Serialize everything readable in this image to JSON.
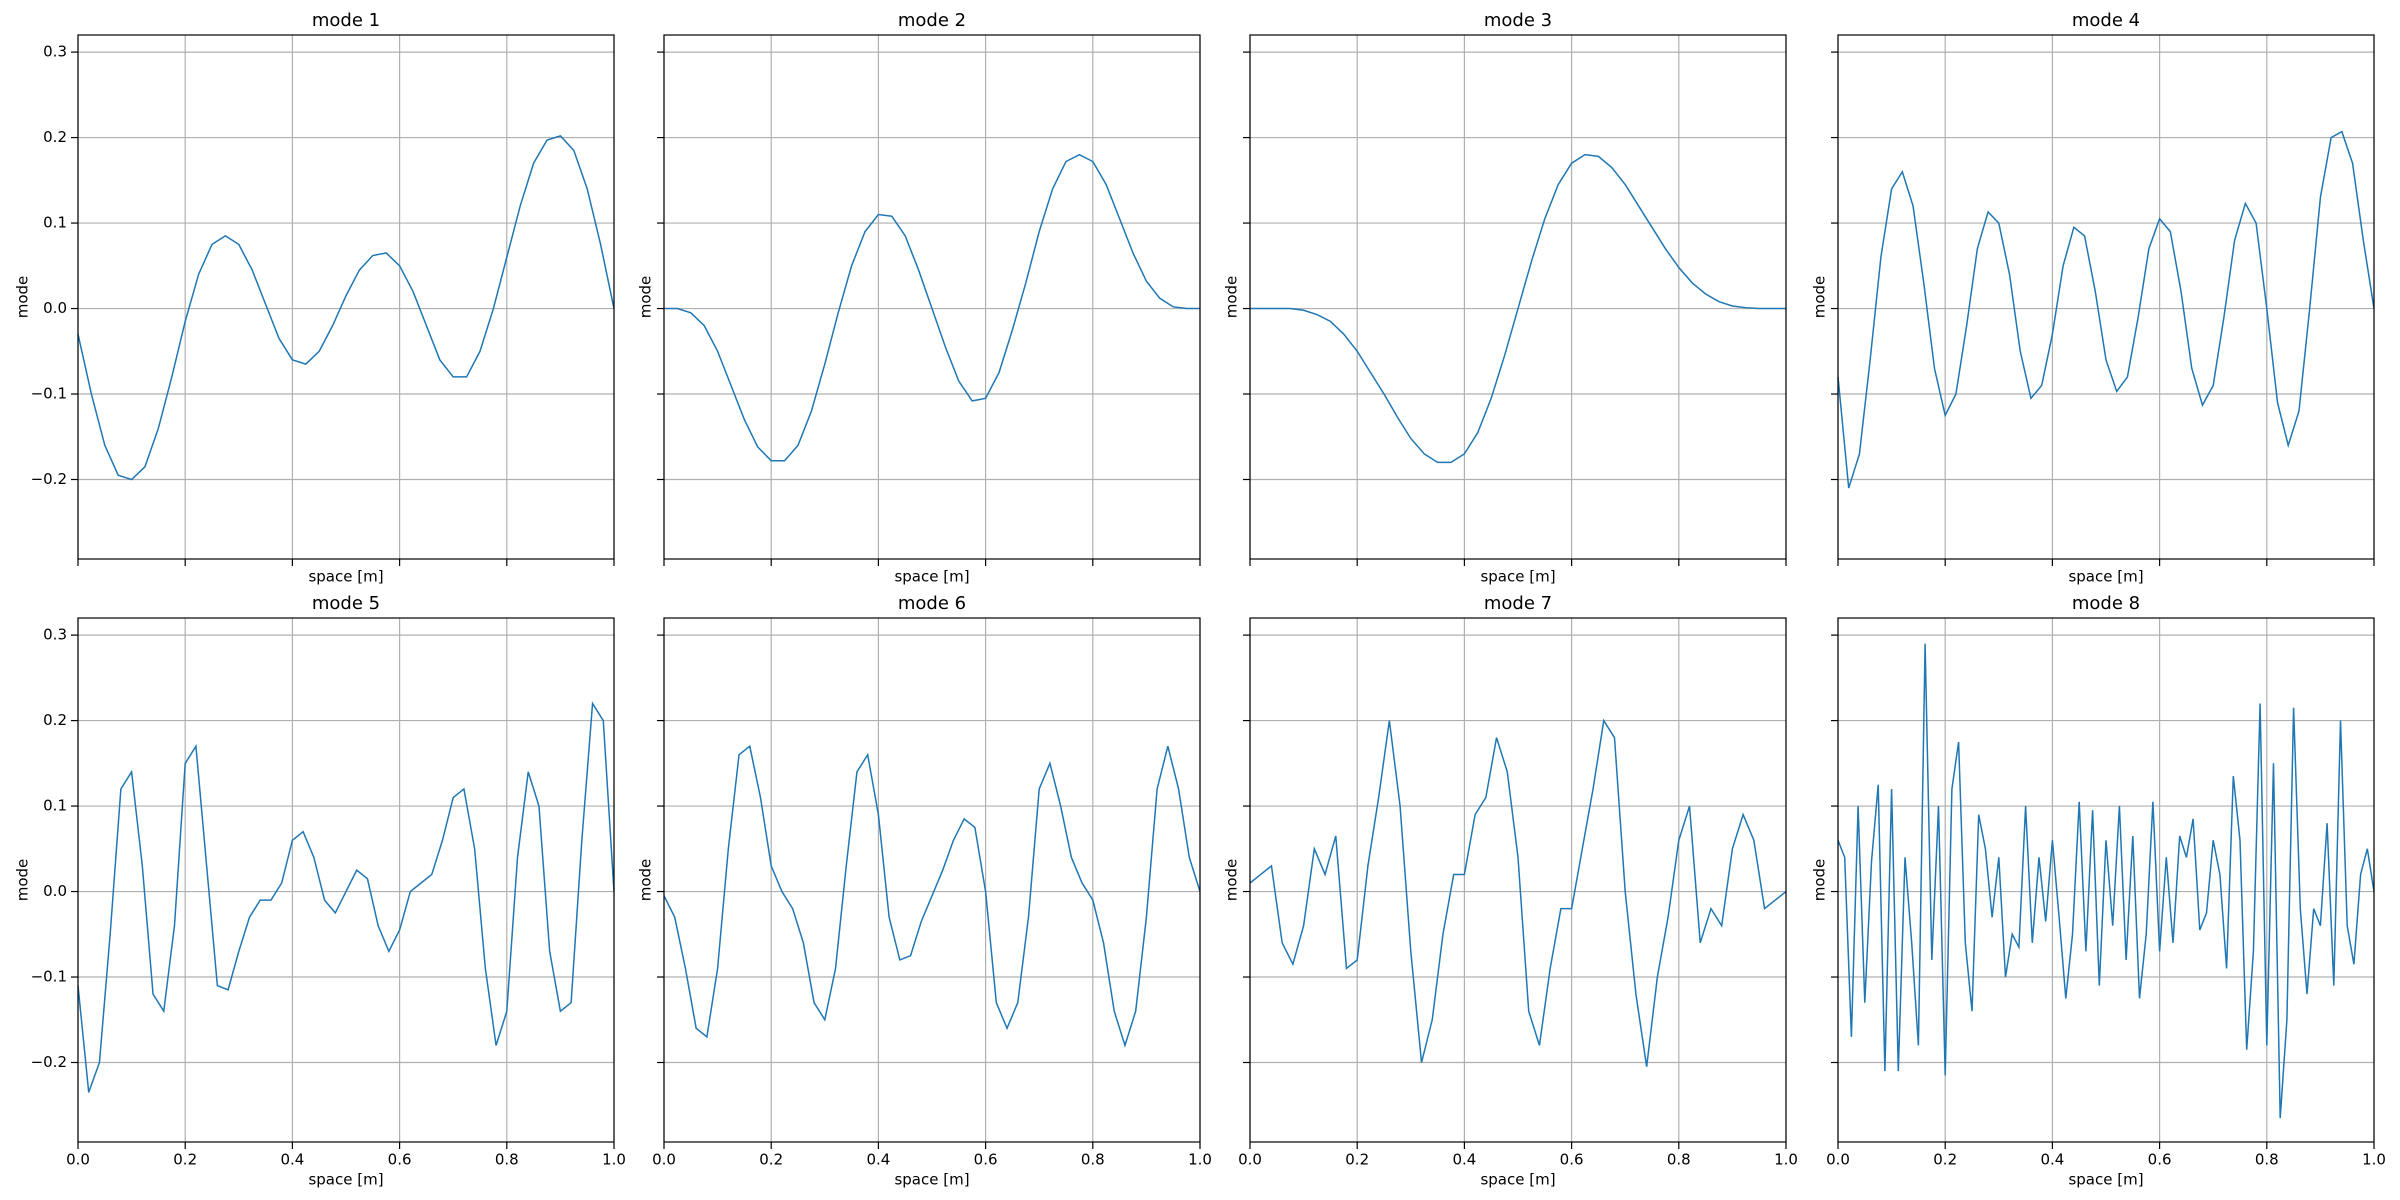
{
  "chart_data": [
    {
      "type": "line",
      "title": "mode 1",
      "xlabel": "space [m]",
      "ylabel": "mode",
      "color": "#1f77b4",
      "grid": true,
      "xlim": [
        0,
        1
      ],
      "ylim": [
        -0.293,
        0.32
      ],
      "xticks": [
        0,
        0.2,
        0.4,
        0.6,
        0.8,
        1
      ],
      "yticks": [
        {
          "value": -0.2,
          "label": "−0.2"
        },
        {
          "value": -0.1,
          "label": "−0.1"
        },
        {
          "value": 0,
          "label": "0.0"
        },
        0.1,
        0.2,
        0.3
      ],
      "x": [
        0,
        0.025,
        0.05,
        0.075,
        0.1,
        0.125,
        0.15,
        0.175,
        0.2,
        0.225,
        0.25,
        0.275,
        0.3,
        0.325,
        0.35,
        0.375,
        0.4,
        0.425,
        0.45,
        0.475,
        0.5,
        0.525,
        0.55,
        0.575,
        0.6,
        0.625,
        0.65,
        0.675,
        0.7,
        0.725,
        0.75,
        0.775,
        0.8,
        0.825,
        0.85,
        0.875,
        0.9,
        0.925,
        0.95,
        0.975,
        1
      ],
      "values": [
        -0.03,
        -0.1,
        -0.16,
        -0.195,
        -0.2,
        -0.185,
        -0.14,
        -0.08,
        -0.015,
        0.04,
        0.075,
        0.085,
        0.075,
        0.045,
        0.005,
        -0.035,
        -0.06,
        -0.065,
        -0.05,
        -0.02,
        0.015,
        0.045,
        0.062,
        0.065,
        0.05,
        0.02,
        -0.02,
        -0.06,
        -0.08,
        -0.08,
        -0.05,
        0.0,
        0.06,
        0.12,
        0.17,
        0.197,
        0.202,
        0.185,
        0.14,
        0.075,
        0.0
      ]
    },
    {
      "type": "line",
      "title": "mode 2",
      "xlabel": "space [m]",
      "ylabel": "mode",
      "color": "#1f77b4",
      "grid": true,
      "xlim": [
        0,
        1
      ],
      "ylim": [
        -0.293,
        0.32
      ],
      "xticks": [
        0,
        0.2,
        0.4,
        0.6,
        0.8,
        1
      ],
      "yticks": [
        -0.2,
        -0.1,
        0,
        0.1,
        0.2,
        0.3
      ],
      "x": [
        0,
        0.025,
        0.05,
        0.075,
        0.1,
        0.125,
        0.15,
        0.175,
        0.2,
        0.225,
        0.25,
        0.275,
        0.3,
        0.325,
        0.35,
        0.375,
        0.4,
        0.425,
        0.45,
        0.475,
        0.5,
        0.525,
        0.55,
        0.575,
        0.6,
        0.625,
        0.65,
        0.675,
        0.7,
        0.725,
        0.75,
        0.775,
        0.8,
        0.825,
        0.85,
        0.875,
        0.9,
        0.925,
        0.95,
        0.975,
        1
      ],
      "values": [
        0,
        0,
        -0.005,
        -0.02,
        -0.05,
        -0.09,
        -0.13,
        -0.162,
        -0.178,
        -0.178,
        -0.16,
        -0.12,
        -0.065,
        -0.005,
        0.05,
        0.09,
        0.11,
        0.108,
        0.085,
        0.045,
        0.0,
        -0.045,
        -0.085,
        -0.108,
        -0.105,
        -0.075,
        -0.025,
        0.03,
        0.09,
        0.14,
        0.172,
        0.18,
        0.172,
        0.145,
        0.105,
        0.065,
        0.032,
        0.012,
        0.002,
        0,
        0
      ]
    },
    {
      "type": "line",
      "title": "mode 3",
      "xlabel": "space [m]",
      "ylabel": "mode",
      "color": "#1f77b4",
      "grid": true,
      "xlim": [
        0,
        1
      ],
      "ylim": [
        -0.293,
        0.32
      ],
      "xticks": [
        0,
        0.2,
        0.4,
        0.6,
        0.8,
        1
      ],
      "yticks": [
        -0.2,
        -0.1,
        0,
        0.1,
        0.2,
        0.3
      ],
      "x": [
        0,
        0.025,
        0.05,
        0.075,
        0.1,
        0.125,
        0.15,
        0.175,
        0.2,
        0.225,
        0.25,
        0.275,
        0.3,
        0.325,
        0.35,
        0.375,
        0.4,
        0.425,
        0.45,
        0.475,
        0.5,
        0.525,
        0.55,
        0.575,
        0.6,
        0.625,
        0.65,
        0.675,
        0.7,
        0.725,
        0.75,
        0.775,
        0.8,
        0.825,
        0.85,
        0.875,
        0.9,
        0.925,
        0.95,
        0.975,
        1
      ],
      "values": [
        0,
        0,
        0,
        0,
        -0.002,
        -0.007,
        -0.015,
        -0.03,
        -0.05,
        -0.075,
        -0.1,
        -0.127,
        -0.152,
        -0.17,
        -0.18,
        -0.18,
        -0.17,
        -0.145,
        -0.105,
        -0.055,
        0.0,
        0.055,
        0.105,
        0.145,
        0.17,
        0.18,
        0.178,
        0.165,
        0.145,
        0.12,
        0.095,
        0.07,
        0.048,
        0.03,
        0.017,
        0.008,
        0.003,
        0.001,
        0,
        0,
        0
      ]
    },
    {
      "type": "line",
      "title": "mode 4",
      "xlabel": "space [m]",
      "ylabel": "mode",
      "color": "#1f77b4",
      "grid": true,
      "xlim": [
        0,
        1
      ],
      "ylim": [
        -0.293,
        0.32
      ],
      "xticks": [
        0,
        0.2,
        0.4,
        0.6,
        0.8,
        1
      ],
      "yticks": [
        -0.2,
        -0.1,
        0,
        0.1,
        0.2,
        0.3
      ],
      "x": [
        0,
        0.02,
        0.04,
        0.06,
        0.08,
        0.1,
        0.12,
        0.14,
        0.16,
        0.18,
        0.2,
        0.22,
        0.24,
        0.26,
        0.28,
        0.3,
        0.32,
        0.34,
        0.36,
        0.38,
        0.4,
        0.42,
        0.44,
        0.46,
        0.48,
        0.5,
        0.52,
        0.54,
        0.56,
        0.58,
        0.6,
        0.62,
        0.64,
        0.66,
        0.68,
        0.7,
        0.72,
        0.74,
        0.76,
        0.78,
        0.8,
        0.82,
        0.84,
        0.86,
        0.88,
        0.9,
        0.92,
        0.94,
        0.96,
        0.98,
        1
      ],
      "values": [
        -0.08,
        -0.21,
        -0.17,
        -0.06,
        0.06,
        0.14,
        0.16,
        0.12,
        0.03,
        -0.07,
        -0.125,
        -0.1,
        -0.02,
        0.07,
        0.113,
        0.1,
        0.04,
        -0.05,
        -0.105,
        -0.09,
        -0.03,
        0.05,
        0.095,
        0.085,
        0.02,
        -0.06,
        -0.097,
        -0.08,
        -0.01,
        0.07,
        0.105,
        0.09,
        0.02,
        -0.07,
        -0.113,
        -0.09,
        -0.01,
        0.08,
        0.123,
        0.1,
        0.0,
        -0.11,
        -0.16,
        -0.12,
        0.0,
        0.13,
        0.2,
        0.207,
        0.17,
        0.08,
        0.0
      ]
    },
    {
      "type": "line",
      "title": "mode 5",
      "xlabel": "space [m]",
      "ylabel": "mode",
      "color": "#1f77b4",
      "grid": true,
      "xlim": [
        0,
        1
      ],
      "ylim": [
        -0.293,
        0.32
      ],
      "xticks": [
        {
          "value": 0,
          "label": "0.0"
        },
        0.2,
        0.4,
        0.6,
        0.8,
        {
          "value": 1,
          "label": "1.0"
        }
      ],
      "yticks": [
        {
          "value": -0.2,
          "label": "−0.2"
        },
        {
          "value": -0.1,
          "label": "−0.1"
        },
        {
          "value": 0,
          "label": "0.0"
        },
        0.1,
        0.2,
        0.3
      ],
      "x": [
        0,
        0.02,
        0.04,
        0.06,
        0.08,
        0.1,
        0.12,
        0.14,
        0.16,
        0.18,
        0.2,
        0.22,
        0.24,
        0.26,
        0.28,
        0.3,
        0.32,
        0.34,
        0.36,
        0.38,
        0.4,
        0.42,
        0.44,
        0.46,
        0.48,
        0.5,
        0.52,
        0.54,
        0.56,
        0.58,
        0.6,
        0.62,
        0.64,
        0.66,
        0.68,
        0.7,
        0.72,
        0.74,
        0.76,
        0.78,
        0.8,
        0.82,
        0.84,
        0.86,
        0.88,
        0.9,
        0.92,
        0.94,
        0.96,
        0.98,
        1
      ],
      "values": [
        -0.11,
        -0.235,
        -0.2,
        -0.05,
        0.12,
        0.14,
        0.03,
        -0.12,
        -0.14,
        -0.04,
        0.15,
        0.17,
        0.03,
        -0.11,
        -0.115,
        -0.07,
        -0.03,
        -0.01,
        -0.01,
        0.01,
        0.06,
        0.07,
        0.04,
        -0.01,
        -0.025,
        0.0,
        0.025,
        0.015,
        -0.04,
        -0.07,
        -0.045,
        0.0,
        0.01,
        0.02,
        0.06,
        0.11,
        0.12,
        0.05,
        -0.09,
        -0.18,
        -0.14,
        0.04,
        0.14,
        0.1,
        -0.07,
        -0.14,
        -0.13,
        0.06,
        0.22,
        0.2,
        0.0
      ]
    },
    {
      "type": "line",
      "title": "mode 6",
      "xlabel": "space [m]",
      "ylabel": "mode",
      "color": "#1f77b4",
      "grid": true,
      "xlim": [
        0,
        1
      ],
      "ylim": [
        -0.293,
        0.32
      ],
      "xticks": [
        {
          "value": 0,
          "label": "0.0"
        },
        0.2,
        0.4,
        0.6,
        0.8,
        {
          "value": 1,
          "label": "1.0"
        }
      ],
      "yticks": [
        -0.2,
        -0.1,
        0,
        0.1,
        0.2,
        0.3
      ],
      "x": [
        0,
        0.02,
        0.04,
        0.06,
        0.08,
        0.1,
        0.12,
        0.14,
        0.16,
        0.18,
        0.2,
        0.22,
        0.24,
        0.26,
        0.28,
        0.3,
        0.32,
        0.34,
        0.36,
        0.38,
        0.4,
        0.42,
        0.44,
        0.46,
        0.48,
        0.5,
        0.52,
        0.54,
        0.56,
        0.58,
        0.6,
        0.62,
        0.64,
        0.66,
        0.68,
        0.7,
        0.72,
        0.74,
        0.76,
        0.78,
        0.8,
        0.82,
        0.84,
        0.86,
        0.88,
        0.9,
        0.92,
        0.94,
        0.96,
        0.98,
        1
      ],
      "values": [
        -0.005,
        -0.03,
        -0.09,
        -0.16,
        -0.17,
        -0.09,
        0.05,
        0.16,
        0.17,
        0.11,
        0.03,
        0.0,
        -0.02,
        -0.06,
        -0.13,
        -0.15,
        -0.09,
        0.03,
        0.14,
        0.16,
        0.09,
        -0.03,
        -0.08,
        -0.075,
        -0.035,
        -0.005,
        0.025,
        0.06,
        0.085,
        0.075,
        0.0,
        -0.13,
        -0.16,
        -0.13,
        -0.03,
        0.12,
        0.15,
        0.1,
        0.04,
        0.01,
        -0.01,
        -0.06,
        -0.14,
        -0.18,
        -0.14,
        -0.03,
        0.12,
        0.17,
        0.12,
        0.04,
        0.0
      ]
    },
    {
      "type": "line",
      "title": "mode 7",
      "xlabel": "space [m]",
      "ylabel": "mode",
      "color": "#1f77b4",
      "grid": true,
      "xlim": [
        0,
        1
      ],
      "ylim": [
        -0.293,
        0.32
      ],
      "xticks": [
        {
          "value": 0,
          "label": "0.0"
        },
        0.2,
        0.4,
        0.6,
        0.8,
        {
          "value": 1,
          "label": "1.0"
        }
      ],
      "yticks": [
        -0.2,
        -0.1,
        0,
        0.1,
        0.2,
        0.3
      ],
      "x": [
        0,
        0.02,
        0.04,
        0.06,
        0.08,
        0.1,
        0.12,
        0.14,
        0.16,
        0.18,
        0.2,
        0.22,
        0.24,
        0.26,
        0.28,
        0.3,
        0.32,
        0.34,
        0.36,
        0.38,
        0.4,
        0.42,
        0.44,
        0.46,
        0.48,
        0.5,
        0.52,
        0.54,
        0.56,
        0.58,
        0.6,
        0.62,
        0.64,
        0.66,
        0.68,
        0.7,
        0.72,
        0.74,
        0.76,
        0.78,
        0.8,
        0.82,
        0.84,
        0.86,
        0.88,
        0.9,
        0.92,
        0.94,
        0.96,
        0.98,
        1
      ],
      "values": [
        0.01,
        0.02,
        0.03,
        -0.06,
        -0.085,
        -0.04,
        0.05,
        0.02,
        0.065,
        -0.09,
        -0.08,
        0.03,
        0.11,
        0.2,
        0.1,
        -0.07,
        -0.2,
        -0.15,
        -0.05,
        0.02,
        0.02,
        0.09,
        0.11,
        0.18,
        0.14,
        0.04,
        -0.14,
        -0.18,
        -0.09,
        -0.02,
        -0.02,
        0.05,
        0.12,
        0.2,
        0.18,
        0.0,
        -0.12,
        -0.205,
        -0.1,
        -0.03,
        0.06,
        0.1,
        -0.06,
        -0.02,
        -0.04,
        0.05,
        0.09,
        0.06,
        -0.02,
        -0.01,
        0.0
      ]
    },
    {
      "type": "line",
      "title": "mode 8",
      "xlabel": "space [m]",
      "ylabel": "mode",
      "color": "#1f77b4",
      "grid": true,
      "xlim": [
        0,
        1
      ],
      "ylim": [
        -0.293,
        0.32
      ],
      "xticks": [
        {
          "value": 0,
          "label": "0.0"
        },
        0.2,
        0.4,
        0.6,
        0.8,
        {
          "value": 1,
          "label": "1.0"
        }
      ],
      "yticks": [
        -0.2,
        -0.1,
        0,
        0.1,
        0.2,
        0.3
      ],
      "x": [
        0,
        0.0125,
        0.025,
        0.0375,
        0.05,
        0.0625,
        0.075,
        0.0875,
        0.1,
        0.1125,
        0.125,
        0.1375,
        0.15,
        0.1625,
        0.175,
        0.1875,
        0.2,
        0.2125,
        0.225,
        0.2375,
        0.25,
        0.2625,
        0.275,
        0.2875,
        0.3,
        0.3125,
        0.325,
        0.3375,
        0.35,
        0.3625,
        0.375,
        0.3875,
        0.4,
        0.4125,
        0.425,
        0.4375,
        0.45,
        0.4625,
        0.475,
        0.4875,
        0.5,
        0.5125,
        0.525,
        0.5375,
        0.55,
        0.5625,
        0.575,
        0.5875,
        0.6,
        0.6125,
        0.625,
        0.6375,
        0.65,
        0.6625,
        0.675,
        0.6875,
        0.7,
        0.7125,
        0.725,
        0.7375,
        0.75,
        0.7625,
        0.775,
        0.7875,
        0.8,
        0.8125,
        0.825,
        0.8375,
        0.85,
        0.8625,
        0.875,
        0.8875,
        0.9,
        0.9125,
        0.925,
        0.9375,
        0.95,
        0.9625,
        0.975,
        0.9875,
        1
      ],
      "values": [
        0.06,
        0.04,
        -0.17,
        0.1,
        -0.13,
        0.035,
        0.125,
        -0.21,
        0.12,
        -0.21,
        0.04,
        -0.06,
        -0.18,
        0.29,
        -0.08,
        0.1,
        -0.215,
        0.12,
        0.175,
        -0.06,
        -0.14,
        0.09,
        0.05,
        -0.03,
        0.04,
        -0.1,
        -0.05,
        -0.065,
        0.1,
        -0.06,
        0.04,
        -0.035,
        0.06,
        -0.03,
        -0.125,
        -0.05,
        0.105,
        -0.07,
        0.095,
        -0.11,
        0.06,
        -0.04,
        0.1,
        -0.08,
        0.065,
        -0.125,
        -0.05,
        0.105,
        -0.07,
        0.04,
        -0.06,
        0.065,
        0.04,
        0.085,
        -0.045,
        -0.025,
        0.06,
        0.02,
        -0.09,
        0.135,
        0.06,
        -0.185,
        -0.07,
        0.22,
        -0.18,
        0.15,
        -0.265,
        -0.15,
        0.215,
        -0.02,
        -0.12,
        -0.02,
        -0.04,
        0.08,
        -0.11,
        0.2,
        -0.04,
        -0.085,
        0.02,
        0.05,
        0.0
      ]
    }
  ]
}
